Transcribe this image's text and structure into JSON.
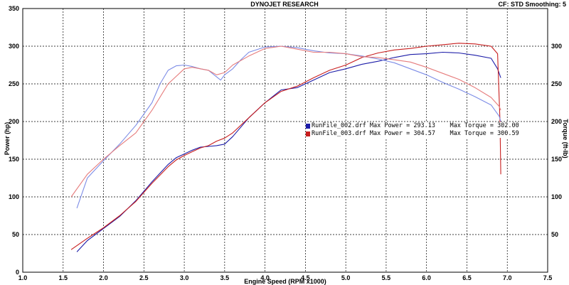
{
  "chart_data": {
    "type": "line",
    "title": "DYNOJET RESEARCH",
    "subtitle": "CF: STD  Smoothing: 5",
    "xlabel": "Engine Speed (RPM x1000)",
    "ylabel_left": "Power (hp)",
    "ylabel_right": "Torque (ft-lb)",
    "xlim": [
      1.0,
      7.5
    ],
    "ylim": [
      0,
      350
    ],
    "y2lim": [
      0,
      350
    ],
    "xticks": [
      "1.0",
      "1.5",
      "2.0",
      "2.5",
      "3.0",
      "3.5",
      "4.0",
      "4.5",
      "5.0",
      "5.5",
      "6.0",
      "6.5",
      "7.0",
      "7.5"
    ],
    "yticks": [
      "0",
      "50",
      "100",
      "150",
      "200",
      "250",
      "300",
      "350"
    ],
    "y2ticks": [
      "50",
      "100",
      "150",
      "200",
      "250",
      "300"
    ],
    "grid": true,
    "legend_position": "center",
    "colors": {
      "run2_power": "#1c1ca8",
      "run3_power": "#c81e1e",
      "run2_torque": "#7c8ce6",
      "run3_torque": "#e67c7c"
    },
    "series": [
      {
        "name": "RunFile_002.drf",
        "measure": "power",
        "color": "#1c1ca8",
        "x": [
          1.67,
          1.8,
          2.0,
          2.2,
          2.4,
          2.6,
          2.8,
          2.9,
          3.0,
          3.1,
          3.2,
          3.3,
          3.4,
          3.5,
          3.6,
          3.8,
          4.0,
          4.2,
          4.4,
          4.6,
          4.8,
          5.0,
          5.2,
          5.4,
          5.6,
          5.8,
          6.0,
          6.2,
          6.4,
          6.6,
          6.8,
          6.88,
          6.92
        ],
        "y": [
          27,
          42,
          58,
          74,
          95,
          120,
          143,
          152,
          157,
          162,
          166,
          167,
          168,
          170,
          180,
          205,
          225,
          242,
          245,
          255,
          265,
          270,
          276,
          280,
          285,
          289,
          290,
          292,
          291,
          288,
          284,
          270,
          258
        ]
      },
      {
        "name": "RunFile_003.drf",
        "measure": "power",
        "color": "#c81e1e",
        "x": [
          1.6,
          1.8,
          2.0,
          2.2,
          2.4,
          2.6,
          2.8,
          2.9,
          3.0,
          3.1,
          3.2,
          3.3,
          3.4,
          3.5,
          3.6,
          3.8,
          4.0,
          4.2,
          4.4,
          4.6,
          4.8,
          5.0,
          5.2,
          5.4,
          5.6,
          5.8,
          6.0,
          6.2,
          6.4,
          6.6,
          6.8,
          6.88,
          6.91,
          6.92
        ],
        "y": [
          30,
          45,
          59,
          75,
          94,
          118,
          140,
          149,
          155,
          160,
          165,
          168,
          174,
          178,
          185,
          205,
          225,
          240,
          247,
          258,
          268,
          275,
          285,
          291,
          295,
          297,
          300,
          302,
          304,
          303,
          300,
          290,
          200,
          130
        ]
      },
      {
        "name": "RunFile_002.drf",
        "measure": "torque",
        "color": "#7c8ce6",
        "x": [
          1.67,
          1.8,
          2.0,
          2.2,
          2.4,
          2.6,
          2.7,
          2.8,
          2.9,
          3.0,
          3.1,
          3.2,
          3.3,
          3.45,
          3.5,
          3.6,
          3.7,
          3.8,
          4.0,
          4.2,
          4.4,
          4.6,
          4.8,
          5.0,
          5.2,
          5.4,
          5.6,
          5.8,
          6.0,
          6.2,
          6.4,
          6.6,
          6.8,
          6.9,
          6.92
        ],
        "y": [
          85,
          125,
          148,
          170,
          195,
          225,
          250,
          268,
          274,
          275,
          273,
          270,
          268,
          255,
          262,
          270,
          282,
          292,
          299,
          300,
          298,
          294,
          291,
          290,
          287,
          283,
          278,
          270,
          262,
          252,
          243,
          233,
          222,
          207,
          200
        ]
      },
      {
        "name": "RunFile_003.drf",
        "measure": "torque",
        "color": "#e67c7c",
        "x": [
          1.6,
          1.8,
          2.0,
          2.2,
          2.4,
          2.6,
          2.8,
          3.0,
          3.1,
          3.2,
          3.3,
          3.4,
          3.5,
          3.6,
          3.8,
          4.0,
          4.2,
          4.4,
          4.6,
          4.8,
          5.0,
          5.2,
          5.4,
          5.6,
          5.8,
          6.0,
          6.2,
          6.4,
          6.6,
          6.8,
          6.9,
          6.92
        ],
        "y": [
          100,
          130,
          150,
          168,
          185,
          215,
          250,
          270,
          272,
          270,
          268,
          262,
          265,
          275,
          287,
          297,
          300,
          296,
          292,
          292,
          290,
          286,
          285,
          282,
          279,
          272,
          264,
          256,
          245,
          232,
          220,
          215
        ]
      }
    ],
    "legend": [
      {
        "file": "RunFile_002.drf",
        "max_power_label": "Max Power",
        "max_power": "293.13",
        "max_torque_label": "Max Torque",
        "max_torque": "302.00",
        "color": "#1c1ca8"
      },
      {
        "file": "RunFile_003.drf",
        "max_power_label": "Max Power",
        "max_power": "304.57",
        "max_torque_label": "Max Torque",
        "max_torque": "300.59",
        "color": "#c81e1e"
      }
    ]
  }
}
